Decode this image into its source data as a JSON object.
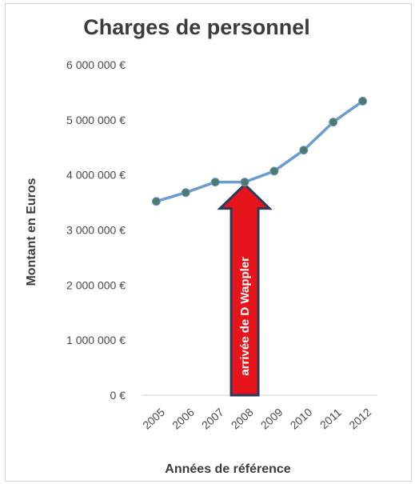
{
  "chart_data": {
    "type": "line",
    "title": "Charges de personnel",
    "xlabel": "Années de référence",
    "ylabel": "Montant en Euros",
    "categories": [
      "2005",
      "2006",
      "2007",
      "2008",
      "2009",
      "2010",
      "2011",
      "2012"
    ],
    "series": [
      {
        "values": [
          3520000,
          3680000,
          3870000,
          3870000,
          4070000,
          4450000,
          4960000,
          5340000
        ]
      }
    ],
    "ylim": [
      0,
      6000000
    ],
    "yticks": [
      "0 €",
      "1 000 000 €",
      "2 000 000 €",
      "3 000 000 €",
      "4 000 000 €",
      "5 000 000 €",
      "6 000 000 €"
    ],
    "grid": false,
    "annotation": {
      "text": "arrivée de D Wappler",
      "category": "2008",
      "pointing_to": 3870000
    },
    "colors": {
      "line": "#6a9bd2",
      "marker": "#4e7a6a",
      "arrow_fill": "#e8141c",
      "arrow_border": "#2a3a5a",
      "axis": "#e2e2e2"
    }
  }
}
